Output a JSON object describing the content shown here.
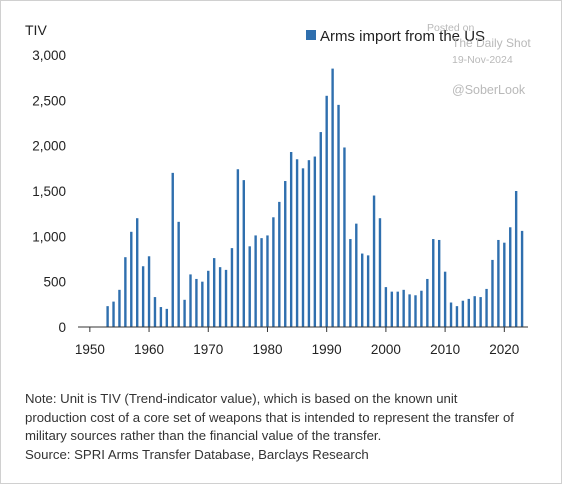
{
  "chart_data": {
    "type": "bar",
    "ylabel": "TIV",
    "series": [
      {
        "name": "Arms import from the US",
        "color": "#2f6fae",
        "x": [
          1953,
          1954,
          1955,
          1956,
          1957,
          1958,
          1959,
          1960,
          1961,
          1962,
          1963,
          1964,
          1965,
          1966,
          1967,
          1968,
          1969,
          1970,
          1971,
          1972,
          1973,
          1974,
          1975,
          1976,
          1977,
          1978,
          1979,
          1980,
          1981,
          1982,
          1983,
          1984,
          1985,
          1986,
          1987,
          1988,
          1989,
          1990,
          1991,
          1992,
          1993,
          1994,
          1995,
          1996,
          1997,
          1998,
          1999,
          2000,
          2001,
          2002,
          2003,
          2004,
          2005,
          2006,
          2007,
          2008,
          2009,
          2010,
          2011,
          2012,
          2013,
          2014,
          2015,
          2016,
          2017,
          2018,
          2019,
          2020,
          2021,
          2022,
          2023
        ],
        "values": [
          230,
          280,
          410,
          770,
          1050,
          1200,
          670,
          780,
          330,
          220,
          200,
          1700,
          1160,
          300,
          580,
          530,
          500,
          620,
          760,
          660,
          630,
          870,
          1740,
          1620,
          890,
          1010,
          980,
          1010,
          1210,
          1380,
          1610,
          1930,
          1850,
          1750,
          1840,
          1880,
          2150,
          2550,
          2850,
          2450,
          1980,
          970,
          1140,
          810,
          790,
          1450,
          1200,
          440,
          390,
          390,
          410,
          360,
          350,
          400,
          530,
          970,
          960,
          610,
          270,
          230,
          290,
          310,
          340,
          330,
          420,
          740,
          960,
          930,
          1100,
          1500,
          1060
        ]
      }
    ],
    "xticks": [
      "1950",
      "1960",
      "1970",
      "1980",
      "1990",
      "2000",
      "2010",
      "2020"
    ],
    "yticks": [
      "0",
      "500",
      "1,000",
      "1,500",
      "2,000",
      "2,500",
      "3,000"
    ],
    "xlim": [
      1948,
      2024
    ],
    "ylim": [
      0,
      3000
    ],
    "legend_position": "top-right",
    "grid": false
  },
  "watermark": {
    "line1": "Posted on",
    "line2": "The Daily Shot",
    "line3": "19-Nov-2024",
    "handle": "@SoberLook"
  },
  "notes": {
    "line1": "Note: Unit is TIV (Trend-indicator value), which is based on the known unit",
    "line2": "production cost of a core set of weapons that is intended to represent the transfer of",
    "line3": "military sources rather than the financial value of the transfer.",
    "line4": "Source: SPRI Arms Transfer Database, Barclays Research"
  }
}
